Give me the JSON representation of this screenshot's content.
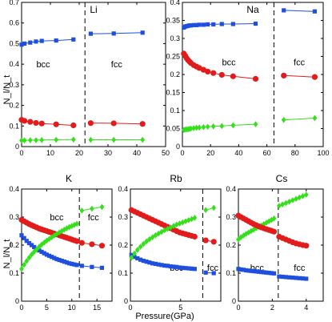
{
  "figure": {
    "ylabel": "N_l/N_t",
    "xlabel": "Pressure(GPa)"
  },
  "colors": {
    "blue": "#1f4fe0",
    "red": "#e21b1b",
    "green": "#33e01a",
    "dashed_line": "#000000"
  },
  "chart_data": [
    {
      "type": "line",
      "title": "Li",
      "xlim": [
        0,
        50
      ],
      "ylim": [
        0,
        0.7
      ],
      "xticks": [
        0,
        10,
        20,
        30,
        40,
        50
      ],
      "yticks": [
        0,
        0.1,
        0.2,
        0.3,
        0.4,
        0.5,
        0.6,
        0.7
      ],
      "transition": 22,
      "phase_labels": [
        {
          "text": "bcc",
          "x": 7.5,
          "y": 0.4
        },
        {
          "text": "fcc",
          "x": 33,
          "y": 0.4
        }
      ],
      "series": [
        {
          "color": "blue",
          "marker": "square",
          "x": [
            0,
            1,
            3,
            5,
            7,
            12,
            18
          ],
          "y": [
            0.495,
            0.5,
            0.505,
            0.51,
            0.513,
            0.515,
            0.52
          ]
        },
        {
          "color": "blue",
          "marker": "square",
          "x": [
            24,
            32,
            42
          ],
          "y": [
            0.548,
            0.549,
            0.553
          ]
        },
        {
          "color": "red",
          "marker": "circle",
          "x": [
            0,
            1,
            3,
            5,
            7,
            12,
            18
          ],
          "y": [
            0.13,
            0.125,
            0.12,
            0.115,
            0.112,
            0.108,
            0.103
          ]
        },
        {
          "color": "red",
          "marker": "circle",
          "x": [
            24,
            32,
            42
          ],
          "y": [
            0.114,
            0.113,
            0.11
          ]
        },
        {
          "color": "green",
          "marker": "diamond",
          "x": [
            0,
            1,
            3,
            5,
            7,
            12,
            18
          ],
          "y": [
            0.03,
            0.03,
            0.031,
            0.031,
            0.032,
            0.033,
            0.034
          ]
        },
        {
          "color": "green",
          "marker": "diamond",
          "x": [
            24,
            32,
            42
          ],
          "y": [
            0.033,
            0.033,
            0.033
          ]
        }
      ]
    },
    {
      "type": "line",
      "title": "Na",
      "xlim": [
        0,
        100
      ],
      "ylim": [
        0,
        0.4
      ],
      "xticks": [
        0,
        20,
        40,
        60,
        80,
        100
      ],
      "yticks": [
        0,
        0.05,
        0.1,
        0.15,
        0.2,
        0.25,
        0.3,
        0.35,
        0.4
      ],
      "transition": 65,
      "phase_labels": [
        {
          "text": "bcc",
          "x": 33,
          "y": 0.235
        },
        {
          "text": "fcc",
          "x": 83,
          "y": 0.235
        }
      ],
      "series": [
        {
          "color": "blue",
          "marker": "square",
          "x": [
            1,
            2,
            3,
            4,
            5,
            6,
            8,
            10,
            12,
            15,
            18,
            22,
            28,
            36,
            52
          ],
          "y": [
            0.33,
            0.333,
            0.334,
            0.335,
            0.336,
            0.336,
            0.337,
            0.337,
            0.338,
            0.338,
            0.339,
            0.339,
            0.34,
            0.34,
            0.341
          ]
        },
        {
          "color": "blue",
          "marker": "square",
          "x": [
            72,
            94
          ],
          "y": [
            0.378,
            0.375
          ]
        },
        {
          "color": "red",
          "marker": "circle",
          "x": [
            1,
            2,
            3,
            4,
            5,
            6,
            8,
            10,
            12,
            15,
            18,
            22,
            28,
            36,
            52
          ],
          "y": [
            0.258,
            0.252,
            0.245,
            0.24,
            0.236,
            0.232,
            0.226,
            0.222,
            0.218,
            0.213,
            0.208,
            0.204,
            0.199,
            0.195,
            0.188
          ]
        },
        {
          "color": "red",
          "marker": "circle",
          "x": [
            72,
            94
          ],
          "y": [
            0.197,
            0.193
          ]
        },
        {
          "color": "green",
          "marker": "diamond",
          "x": [
            1,
            2,
            3,
            4,
            5,
            6,
            8,
            10,
            12,
            15,
            18,
            22,
            28,
            36,
            52
          ],
          "y": [
            0.046,
            0.047,
            0.048,
            0.048,
            0.049,
            0.05,
            0.051,
            0.052,
            0.053,
            0.054,
            0.055,
            0.056,
            0.057,
            0.059,
            0.062
          ]
        },
        {
          "color": "green",
          "marker": "diamond",
          "x": [
            72,
            94
          ],
          "y": [
            0.074,
            0.079
          ]
        }
      ]
    },
    {
      "type": "line",
      "title": "K",
      "xlim": [
        0,
        18
      ],
      "ylim": [
        0,
        0.4
      ],
      "xticks": [
        0,
        5,
        10,
        15
      ],
      "yticks": [
        0,
        0.1,
        0.2,
        0.3,
        0.4
      ],
      "transition": 11.5,
      "phase_labels": [
        {
          "text": "bcc",
          "x": 7,
          "y": 0.3
        },
        {
          "text": "fcc",
          "x": 14.3,
          "y": 0.3
        }
      ],
      "series": [
        {
          "color": "red",
          "marker": "circle",
          "x": [
            0,
            0.5,
            1,
            1.5,
            2,
            2.5,
            3,
            3.5,
            4,
            4.5,
            5,
            5.5,
            6,
            6.5,
            7,
            7.5,
            8,
            8.5,
            9,
            9.5,
            10,
            10.5,
            11
          ],
          "y": [
            0.29,
            0.285,
            0.28,
            0.275,
            0.271,
            0.267,
            0.263,
            0.259,
            0.256,
            0.253,
            0.25,
            0.247,
            0.244,
            0.241,
            0.238,
            0.235,
            0.232,
            0.229,
            0.226,
            0.223,
            0.22,
            0.217,
            0.214
          ]
        },
        {
          "color": "red",
          "marker": "circle",
          "x": [
            12,
            14,
            16
          ],
          "y": [
            0.208,
            0.203,
            0.198
          ]
        },
        {
          "color": "blue",
          "marker": "square",
          "x": [
            0,
            0.5,
            1,
            1.5,
            2,
            2.5,
            3,
            3.5,
            4,
            4.5,
            5,
            5.5,
            6,
            6.5,
            7,
            7.5,
            8,
            8.5,
            9,
            9.5,
            10,
            10.5,
            11
          ],
          "y": [
            0.235,
            0.225,
            0.215,
            0.207,
            0.2,
            0.193,
            0.187,
            0.181,
            0.176,
            0.171,
            0.166,
            0.162,
            0.158,
            0.154,
            0.15,
            0.147,
            0.144,
            0.141,
            0.138,
            0.135,
            0.133,
            0.131,
            0.129
          ]
        },
        {
          "color": "blue",
          "marker": "square",
          "x": [
            12,
            14,
            16
          ],
          "y": [
            0.126,
            0.122,
            0.119
          ]
        },
        {
          "color": "green",
          "marker": "diamond",
          "x": [
            0,
            0.5,
            1,
            1.5,
            2,
            2.5,
            3,
            3.5,
            4,
            4.5,
            5,
            5.5,
            6,
            6.5,
            7,
            7.5,
            8,
            8.5,
            9,
            9.5,
            10,
            10.5,
            11
          ],
          "y": [
            0.115,
            0.13,
            0.143,
            0.155,
            0.166,
            0.176,
            0.185,
            0.194,
            0.202,
            0.209,
            0.216,
            0.222,
            0.228,
            0.234,
            0.24,
            0.245,
            0.25,
            0.255,
            0.26,
            0.264,
            0.268,
            0.272,
            0.276
          ]
        },
        {
          "color": "green",
          "marker": "diamond",
          "x": [
            12,
            14,
            16
          ],
          "y": [
            0.323,
            0.33,
            0.336
          ]
        }
      ]
    },
    {
      "type": "line",
      "title": "Rb",
      "xlim": [
        0,
        9
      ],
      "ylim": [
        0,
        0.4
      ],
      "xticks": [
        0,
        5
      ],
      "yticks": [
        0,
        0.1,
        0.2,
        0.3,
        0.4
      ],
      "transition": 7.2,
      "phase_labels": [
        {
          "text": "bcc",
          "x": 4.6,
          "y": 0.12
        },
        {
          "text": "fcc",
          "x": 8.2,
          "y": 0.12
        }
      ],
      "series": [
        {
          "color": "red",
          "marker": "circle",
          "x": [
            0.1,
            0.4,
            0.7,
            1,
            1.3,
            1.6,
            1.9,
            2.2,
            2.5,
            2.8,
            3.1,
            3.4,
            3.7,
            4,
            4.3,
            4.6,
            4.9,
            5.2,
            5.5,
            5.8,
            6.1,
            6.4
          ],
          "y": [
            0.325,
            0.32,
            0.315,
            0.31,
            0.305,
            0.3,
            0.295,
            0.29,
            0.285,
            0.28,
            0.275,
            0.27,
            0.265,
            0.26,
            0.255,
            0.25,
            0.245,
            0.242,
            0.239,
            0.236,
            0.233,
            0.23
          ]
        },
        {
          "color": "red",
          "marker": "circle",
          "x": [
            7.5,
            8.3
          ],
          "y": [
            0.217,
            0.212
          ]
        },
        {
          "color": "blue",
          "marker": "square",
          "x": [
            0.1,
            0.4,
            0.7,
            1,
            1.3,
            1.6,
            1.9,
            2.2,
            2.5,
            2.8,
            3.1,
            3.4,
            3.7,
            4,
            4.3,
            4.6,
            4.9,
            5.2,
            5.5,
            5.8,
            6.1,
            6.4
          ],
          "y": [
            0.165,
            0.158,
            0.153,
            0.148,
            0.144,
            0.141,
            0.138,
            0.135,
            0.133,
            0.131,
            0.129,
            0.127,
            0.126,
            0.124,
            0.123,
            0.122,
            0.12,
            0.119,
            0.118,
            0.117,
            0.116,
            0.115
          ]
        },
        {
          "color": "blue",
          "marker": "square",
          "x": [
            7.5,
            8.3
          ],
          "y": [
            0.102,
            0.1
          ]
        },
        {
          "color": "green",
          "marker": "diamond",
          "x": [
            0.1,
            0.4,
            0.7,
            1,
            1.3,
            1.6,
            1.9,
            2.2,
            2.5,
            2.8,
            3.1,
            3.4,
            3.7,
            4,
            4.3,
            4.6,
            4.9,
            5.2,
            5.5,
            5.8,
            6.1,
            6.4
          ],
          "y": [
            0.155,
            0.17,
            0.183,
            0.194,
            0.204,
            0.213,
            0.221,
            0.228,
            0.235,
            0.241,
            0.247,
            0.253,
            0.258,
            0.263,
            0.268,
            0.273,
            0.277,
            0.281,
            0.285,
            0.289,
            0.293,
            0.297
          ]
        },
        {
          "color": "green",
          "marker": "diamond",
          "x": [
            7.5,
            8.3
          ],
          "y": [
            0.325,
            0.333
          ]
        }
      ]
    },
    {
      "type": "line",
      "title": "Cs",
      "xlim": [
        0,
        5
      ],
      "ylim": [
        0,
        0.4
      ],
      "xticks": [
        0,
        2,
        4
      ],
      "yticks": [
        0,
        0.1,
        0.2,
        0.3,
        0.4
      ],
      "transition": 2.35,
      "phase_labels": [
        {
          "text": "bcc",
          "x": 1.1,
          "y": 0.12
        },
        {
          "text": "fcc",
          "x": 3.6,
          "y": 0.12
        }
      ],
      "series": [
        {
          "color": "green",
          "marker": "diamond",
          "x": [
            0,
            0.15,
            0.3,
            0.45,
            0.6,
            0.75,
            0.9,
            1.05,
            1.2,
            1.35,
            1.5,
            1.65,
            1.8,
            1.95,
            2.1
          ],
          "y": [
            0.22,
            0.228,
            0.234,
            0.24,
            0.245,
            0.25,
            0.255,
            0.26,
            0.265,
            0.27,
            0.275,
            0.28,
            0.285,
            0.29,
            0.295
          ]
        },
        {
          "color": "green",
          "marker": "diamond",
          "x": [
            2.4,
            2.6,
            2.8,
            3,
            3.2,
            3.4,
            3.6,
            3.8,
            4
          ],
          "y": [
            0.34,
            0.345,
            0.35,
            0.355,
            0.36,
            0.365,
            0.37,
            0.375,
            0.38
          ]
        },
        {
          "color": "red",
          "marker": "circle",
          "x": [
            0,
            0.15,
            0.3,
            0.45,
            0.6,
            0.75,
            0.9,
            1.05,
            1.2,
            1.35,
            1.5,
            1.65,
            1.8,
            1.95,
            2.1
          ],
          "y": [
            0.305,
            0.3,
            0.295,
            0.29,
            0.285,
            0.28,
            0.275,
            0.271,
            0.267,
            0.263,
            0.26,
            0.257,
            0.254,
            0.251,
            0.248
          ]
        },
        {
          "color": "red",
          "marker": "circle",
          "x": [
            2.4,
            2.6,
            2.8,
            3,
            3.2,
            3.4,
            3.6,
            3.8,
            4
          ],
          "y": [
            0.23,
            0.225,
            0.22,
            0.215,
            0.21,
            0.206,
            0.203,
            0.2,
            0.198
          ]
        },
        {
          "color": "blue",
          "marker": "square",
          "x": [
            0,
            0.15,
            0.3,
            0.45,
            0.6,
            0.75,
            0.9,
            1.05,
            1.2,
            1.35,
            1.5,
            1.65,
            1.8,
            1.95,
            2.1
          ],
          "y": [
            0.115,
            0.113,
            0.112,
            0.11,
            0.109,
            0.108,
            0.107,
            0.106,
            0.105,
            0.104,
            0.103,
            0.102,
            0.101,
            0.1,
            0.099
          ]
        },
        {
          "color": "blue",
          "marker": "square",
          "x": [
            2.4,
            2.6,
            2.8,
            3,
            3.2,
            3.4,
            3.6,
            3.8,
            4
          ],
          "y": [
            0.088,
            0.087,
            0.086,
            0.085,
            0.084,
            0.083,
            0.082,
            0.081,
            0.08
          ]
        }
      ]
    }
  ]
}
